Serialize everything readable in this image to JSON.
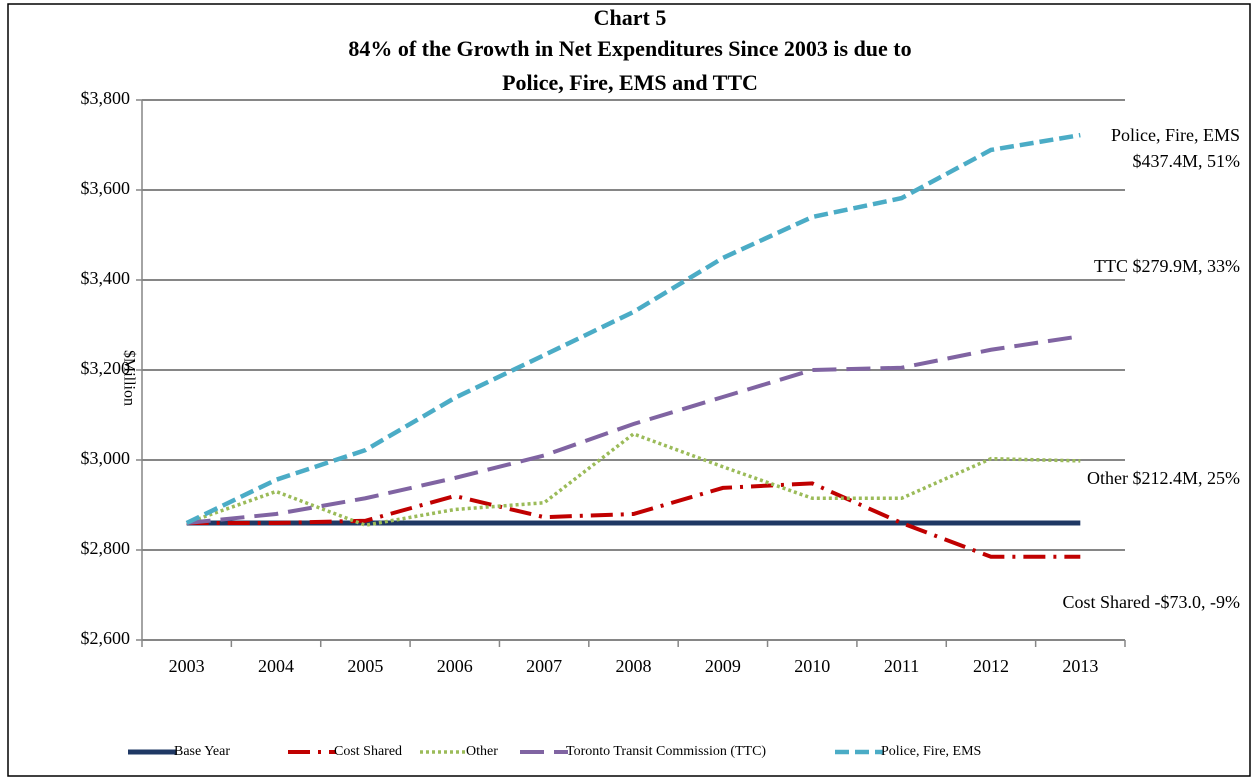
{
  "chart_data": {
    "type": "line",
    "title": [
      "Chart 5",
      "84% of the Growth in Net Expenditures Since 2003 is due to",
      "Police, Fire, EMS and TTC"
    ],
    "y_label": "$Million",
    "categories": [
      "2003",
      "2004",
      "2005",
      "2006",
      "2007",
      "2008",
      "2009",
      "2010",
      "2011",
      "2012",
      "2013"
    ],
    "series": [
      {
        "name": "Base Year",
        "color": "#1f3864",
        "style": "solid",
        "values": [
          2860,
          2860,
          2860,
          2860,
          2860,
          2860,
          2860,
          2860,
          2860,
          2860,
          2860
        ]
      },
      {
        "name": "Cost Shared",
        "color": "#c00000",
        "style": "dashdot",
        "values": [
          2860,
          2860,
          2865,
          2920,
          2873,
          2880,
          2938,
          2948,
          2860,
          2785,
          2785
        ]
      },
      {
        "name": "Other",
        "color": "#9bbb59",
        "style": "dot",
        "values": [
          2860,
          2930,
          2855,
          2890,
          2905,
          3058,
          2985,
          2915,
          2915,
          3003,
          2998
        ]
      },
      {
        "name": "Toronto Transit Commission (TTC)",
        "color": "#8064a2",
        "style": "longdash",
        "values": [
          2860,
          2880,
          2915,
          2960,
          3010,
          3080,
          3140,
          3200,
          3205,
          3245,
          3275
        ]
      },
      {
        "name": "Police, Fire, EMS",
        "color": "#4bacc6",
        "style": "dash",
        "values": [
          2860,
          2956,
          3022,
          3138,
          3233,
          3329,
          3449,
          3540,
          3582,
          3689,
          3722
        ]
      }
    ],
    "annotations": [
      [
        "Police, Fire, EMS",
        "$437.4M, 51%"
      ],
      [
        "TTC $279.9M, 33%"
      ],
      [
        "Other $212.4M,  25%"
      ],
      [
        "Cost Shared -$73.0, -9%"
      ]
    ],
    "ylim": [
      2600,
      3800
    ],
    "yticks": [
      {
        "value": 2600,
        "label": "$2,600"
      },
      {
        "value": 2800,
        "label": "$2,800"
      },
      {
        "value": 3000,
        "label": "$3,000"
      },
      {
        "value": 3200,
        "label": "$3,200"
      },
      {
        "value": 3400,
        "label": "$3,400"
      },
      {
        "value": 3600,
        "label": "$3,600"
      },
      {
        "value": 3800,
        "label": "$3,800"
      }
    ],
    "grid": true,
    "legend": "bottom"
  }
}
